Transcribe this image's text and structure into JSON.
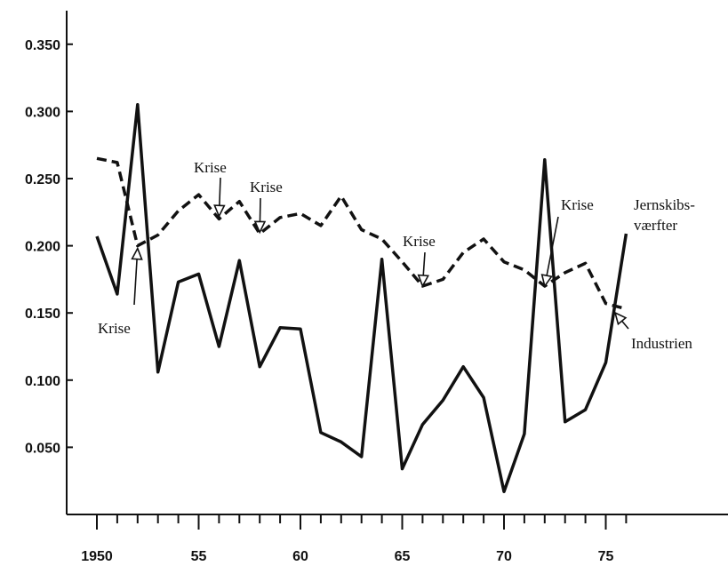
{
  "chart_data": {
    "type": "line",
    "x_ticks": [
      {
        "value": 1950,
        "label": "1950"
      },
      {
        "value": 1955,
        "label": "55"
      },
      {
        "value": 1960,
        "label": "60"
      },
      {
        "value": 1965,
        "label": "65"
      },
      {
        "value": 1970,
        "label": "70"
      },
      {
        "value": 1975,
        "label": "75"
      }
    ],
    "y_ticks": [
      {
        "value": 0.05,
        "label": "0.050"
      },
      {
        "value": 0.1,
        "label": "0.100"
      },
      {
        "value": 0.15,
        "label": "0.150"
      },
      {
        "value": 0.2,
        "label": "0.200"
      },
      {
        "value": 0.25,
        "label": "0.250"
      },
      {
        "value": 0.3,
        "label": "0.300"
      },
      {
        "value": 0.35,
        "label": "0.350"
      }
    ],
    "xlim": [
      1950,
      1979
    ],
    "ylim": [
      0.0,
      0.375
    ],
    "grid": false,
    "series": [
      {
        "name": "Jernskibs- værfter",
        "style": "solid",
        "x": [
          1950,
          1951,
          1952,
          1953,
          1954,
          1955,
          1956,
          1957,
          1958,
          1959,
          1960,
          1961,
          1962,
          1963,
          1964,
          1965,
          1966,
          1967,
          1968,
          1969,
          1970,
          1971,
          1972,
          1973,
          1974,
          1975,
          1976
        ],
        "values": [
          0.207,
          0.164,
          0.305,
          0.106,
          0.173,
          0.179,
          0.125,
          0.189,
          0.11,
          0.139,
          0.138,
          0.061,
          0.054,
          0.043,
          0.19,
          0.034,
          0.067,
          0.085,
          0.11,
          0.087,
          0.017,
          0.06,
          0.264,
          0.069,
          0.078,
          0.113,
          0.209
        ]
      },
      {
        "name": "Industrien",
        "style": "dashed",
        "x": [
          1950,
          1951,
          1952,
          1953,
          1954,
          1955,
          1956,
          1957,
          1958,
          1959,
          1960,
          1961,
          1962,
          1963,
          1964,
          1965,
          1966,
          1967,
          1968,
          1969,
          1970,
          1971,
          1972,
          1973,
          1974,
          1975,
          1976
        ],
        "values": [
          0.265,
          0.262,
          0.2,
          0.208,
          0.226,
          0.238,
          0.22,
          0.233,
          0.209,
          0.221,
          0.224,
          0.215,
          0.237,
          0.212,
          0.205,
          0.188,
          0.17,
          0.175,
          0.195,
          0.205,
          0.188,
          0.182,
          0.17,
          0.18,
          0.187,
          0.157,
          0.153
        ]
      }
    ],
    "annotations": [
      {
        "text": "Krise",
        "x": 1952,
        "y": 0.2
      },
      {
        "text": "Krise",
        "x": 1956,
        "y": 0.224
      },
      {
        "text": "Krise",
        "x": 1958,
        "y": 0.212
      },
      {
        "text": "Krise",
        "x": 1966,
        "y": 0.172
      },
      {
        "text": "Krise",
        "x": 1972,
        "y": 0.172
      }
    ],
    "series_labels": [
      {
        "lines": [
          "Jernskibs-",
          "værfter"
        ]
      },
      {
        "lines": [
          "Industrien"
        ]
      }
    ],
    "colors": {
      "line": "#111111",
      "background": "#ffffff"
    }
  }
}
